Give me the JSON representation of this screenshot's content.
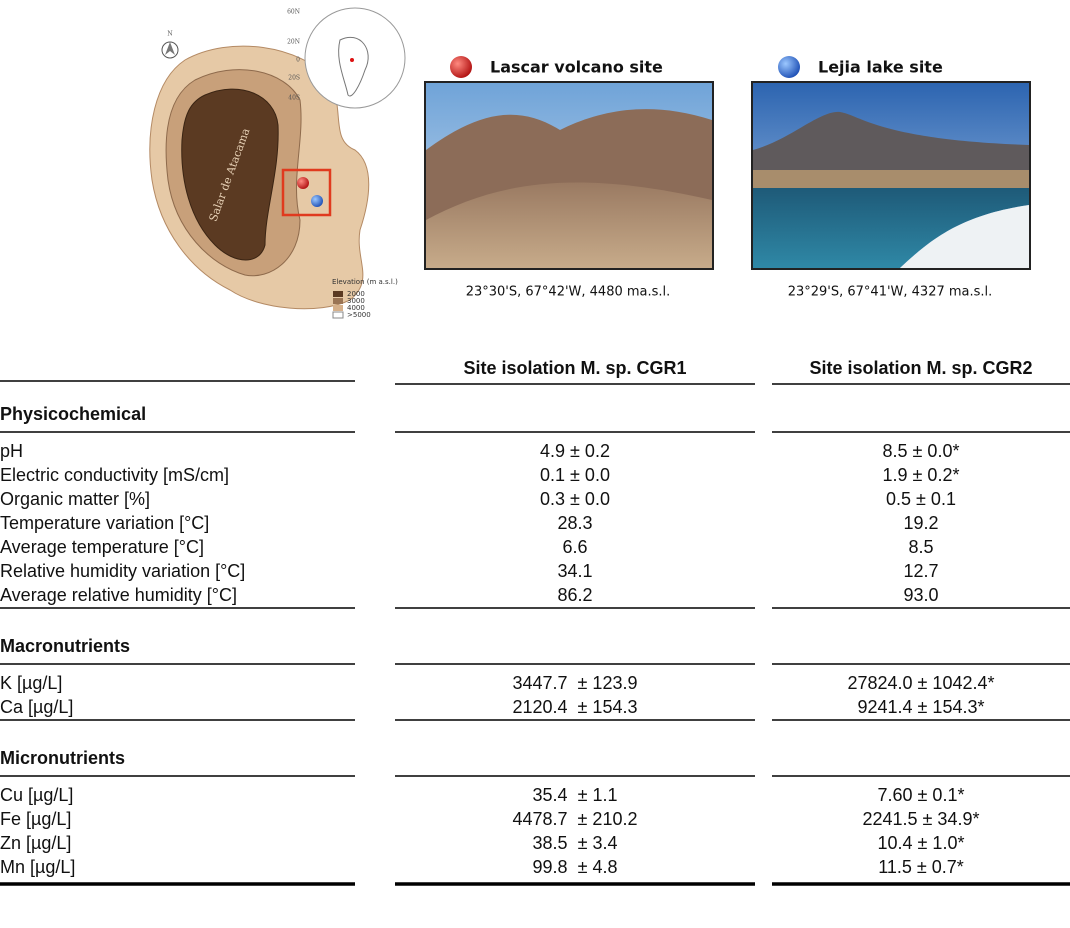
{
  "map": {
    "north": "N",
    "lat_labels": [
      "60N",
      "20N",
      "0",
      "20S",
      "40S"
    ],
    "region": "Salar de Atacama",
    "legend_title": "Elevation (m a.s.l.)",
    "legend": [
      "2000",
      "3000",
      "4000",
      ">5000"
    ]
  },
  "sites": [
    {
      "name": "Lascar volcano site",
      "coords": "23°30'S, 67°42'W, 4480 ma.s.l."
    },
    {
      "name": "Lejia lake site",
      "coords": "23°29'S, 67°41'W, 4327 ma.s.l."
    }
  ],
  "table": {
    "headers": [
      "Site isolation M. sp. CGR1",
      "Site isolation M. sp. CGR2"
    ],
    "sections": [
      {
        "title": "Physicochemical",
        "rows": [
          [
            "pH",
            "4.9 ± 0.2",
            "8.5 ± 0.0*"
          ],
          [
            "Electric conductivity [mS/cm]",
            "0.1 ± 0.0",
            "1.9 ± 0.2*"
          ],
          [
            "Organic matter [%]",
            "0.3 ± 0.0",
            "0.5 ± 0.1"
          ],
          [
            "Temperature variation [°C]",
            "28.3",
            "19.2"
          ],
          [
            "Average temperature [°C]",
            "6.6",
            "8.5"
          ],
          [
            "Relative humidity variation [°C]",
            "34.1",
            "12.7"
          ],
          [
            "Average relative humidity [°C]",
            "86.2",
            "93.0"
          ]
        ]
      },
      {
        "title": "Macronutrients",
        "rows": [
          [
            "K [µg/L]",
            "3447.7  ± 123.9",
            "27824.0 ± 1042.4*"
          ],
          [
            "Ca  [µg/L]",
            "2120.4  ± 154.3",
            "9241.4 ± 154.3*"
          ]
        ]
      },
      {
        "title": "Micronutrients",
        "rows": [
          [
            "Cu [µg/L]",
            "35.4  ± 1.1",
            "7.60 ± 0.1*"
          ],
          [
            "Fe [µg/L]",
            "4478.7  ± 210.2",
            "2241.5 ± 34.9*"
          ],
          [
            "Zn [µg/L]",
            "38.5  ± 3.4",
            "10.4 ± 1.0*"
          ],
          [
            "Mn [µg/L]",
            "99.8  ± 4.8",
            "11.5 ± 0.7*"
          ]
        ]
      }
    ]
  }
}
